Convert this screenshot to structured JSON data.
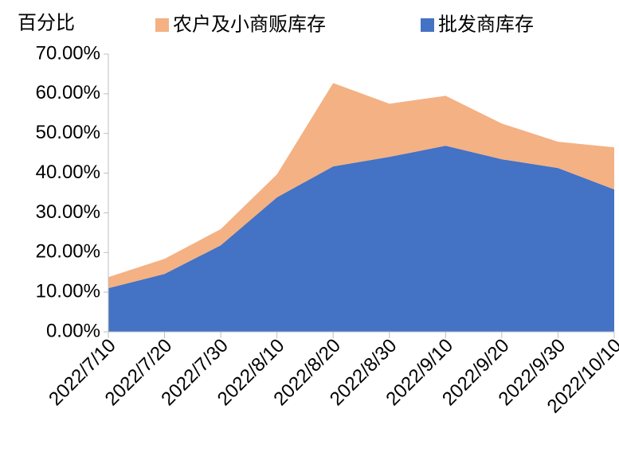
{
  "chart_data": {
    "type": "stacked-area",
    "y_axis_title": "百分比",
    "categories": [
      "2022/7/10",
      "2022/7/20",
      "2022/7/30",
      "2022/8/10",
      "2022/8/20",
      "2022/8/30",
      "2022/9/10",
      "2022/9/20",
      "2022/9/30",
      "2022/10/10"
    ],
    "series": [
      {
        "name": "农户及小商贩库存",
        "color": "#f4b183",
        "values": [
          2.8,
          3.8,
          4.1,
          5.8,
          21.0,
          13.4,
          12.6,
          9.0,
          6.6,
          10.6
        ]
      },
      {
        "name": "批发商库存",
        "color": "#4472c4",
        "values": [
          11.0,
          14.6,
          21.8,
          33.9,
          41.7,
          44.1,
          46.9,
          43.5,
          41.3,
          35.9
        ]
      }
    ],
    "ylim": [
      0,
      70
    ],
    "yticks": [
      {
        "value": 0,
        "label": "0.00%"
      },
      {
        "value": 10,
        "label": "10.00%"
      },
      {
        "value": 20,
        "label": "20.00%"
      },
      {
        "value": 30,
        "label": "30.00%"
      },
      {
        "value": 40,
        "label": "40.00%"
      },
      {
        "value": 50,
        "label": "50.00%"
      },
      {
        "value": 60,
        "label": "60.00%"
      },
      {
        "value": 70,
        "label": "70.00%"
      }
    ]
  }
}
